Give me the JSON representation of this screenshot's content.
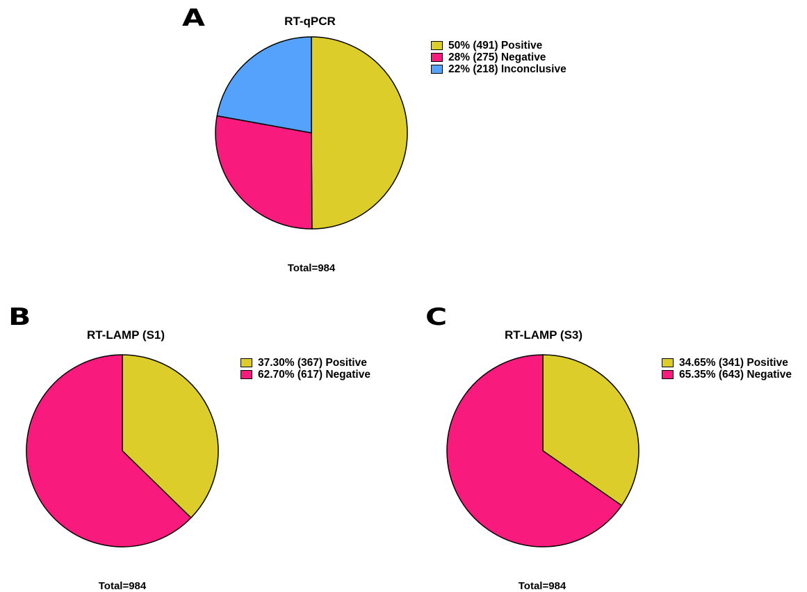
{
  "colors": {
    "positive": "#dccd2a",
    "negative": "#f91a7d",
    "inconclusive": "#54a2fb",
    "outline": "#000000"
  },
  "panels": [
    {
      "letter": "A",
      "title": "RT-qPCR",
      "total": "Total=984",
      "legend": [
        {
          "text": "50%  (491) Positive",
          "color": "#dccd2a"
        },
        {
          "text": "28%  (275) Negative",
          "color": "#f91a7d"
        },
        {
          "text": "22%  (218) Inconclusive",
          "color": "#54a2fb"
        }
      ]
    },
    {
      "letter": "B",
      "title": "RT-LAMP (S1)",
      "total": "Total=984",
      "legend": [
        {
          "text": "37.30%  (367) Positive",
          "color": "#dccd2a"
        },
        {
          "text": "62.70%  (617) Negative",
          "color": "#f91a7d"
        }
      ]
    },
    {
      "letter": "C",
      "title": "RT-LAMP (S3)",
      "total": "Total=984",
      "legend": [
        {
          "text": "34.65%  (341) Positive",
          "color": "#dccd2a"
        },
        {
          "text": "65.35%  (643) Negative",
          "color": "#f91a7d"
        }
      ]
    }
  ],
  "chart_data": [
    {
      "type": "pie",
      "title": "RT-qPCR",
      "categories": [
        "Positive",
        "Negative",
        "Inconclusive"
      ],
      "values": [
        491,
        275,
        218
      ],
      "percentages": [
        50,
        28,
        22
      ],
      "colors": [
        "#dccd2a",
        "#f91a7d",
        "#54a2fb"
      ],
      "total": 984,
      "legend_position": "right"
    },
    {
      "type": "pie",
      "title": "RT-LAMP (S1)",
      "categories": [
        "Positive",
        "Negative"
      ],
      "values": [
        367,
        617
      ],
      "percentages": [
        37.3,
        62.7
      ],
      "colors": [
        "#dccd2a",
        "#f91a7d"
      ],
      "total": 984,
      "legend_position": "right"
    },
    {
      "type": "pie",
      "title": "RT-LAMP (S3)",
      "categories": [
        "Positive",
        "Negative"
      ],
      "values": [
        341,
        643
      ],
      "percentages": [
        34.65,
        65.35
      ],
      "colors": [
        "#dccd2a",
        "#f91a7d"
      ],
      "total": 984,
      "legend_position": "right"
    }
  ]
}
